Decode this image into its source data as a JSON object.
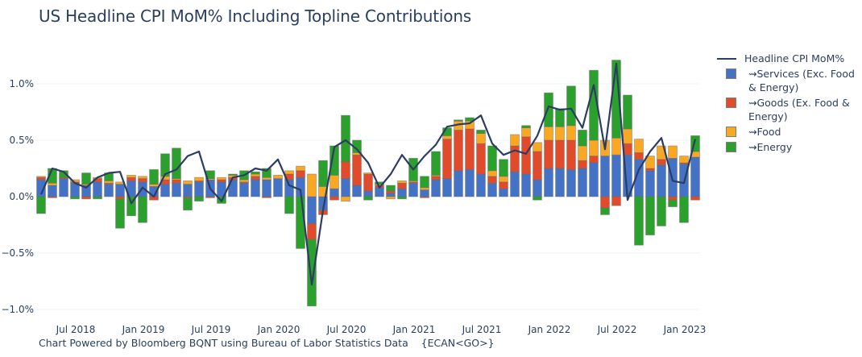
{
  "title": "US Headline CPI MoM% Including Topline Contributions",
  "footer": "Chart Powered by Bloomberg BQNT using Bureau of Labor Statistics Data    {ECAN<GO>}",
  "colors": {
    "services": "#4472c4",
    "goods": "#e04b2c",
    "food": "#f9a825",
    "energy": "#2ca02c",
    "headline": "#2b3d63",
    "axis_text": "#2a3f5f",
    "grid": "#ebf0f8"
  },
  "legend": [
    {
      "key": "headline",
      "label": "Headline CPI MoM%",
      "type": "line"
    },
    {
      "key": "services",
      "label": "⇝Services (Exc. Food & Energy)",
      "type": "bar"
    },
    {
      "key": "goods",
      "label": "⇝Goods (Ex. Food & Energy)",
      "type": "bar"
    },
    {
      "key": "food",
      "label": "⇝Food",
      "type": "bar"
    },
    {
      "key": "energy",
      "label": "⇝Energy",
      "type": "bar"
    }
  ],
  "chart_data": {
    "type": "bar",
    "barmode": "relative",
    "title": "US Headline CPI MoM% Including Topline Contributions",
    "xlabel": "",
    "ylabel": "",
    "ylim": [
      -1.05,
      1.35
    ],
    "yticks": [
      1.0,
      0.5,
      0.0,
      -0.5,
      -1.0
    ],
    "ytick_labels": [
      "1.0%",
      "0.5%",
      "0.0%",
      "−0.5%",
      "−1.0%"
    ],
    "xtick_labels": [
      {
        "label": "Jul 2018",
        "index": 3
      },
      {
        "label": "Jan 2019",
        "index": 9
      },
      {
        "label": "Jul 2019",
        "index": 15
      },
      {
        "label": "Jan 2020",
        "index": 21
      },
      {
        "label": "Jul 2020",
        "index": 27
      },
      {
        "label": "Jan 2021",
        "index": 33
      },
      {
        "label": "Jul 2021",
        "index": 39
      },
      {
        "label": "Jan 2022",
        "index": 45
      },
      {
        "label": "Jul 2022",
        "index": 51
      },
      {
        "label": "Jan 2023",
        "index": 57
      }
    ],
    "grid": true,
    "legend_position": "right",
    "categories": [
      "2018-04",
      "2018-05",
      "2018-06",
      "2018-07",
      "2018-08",
      "2018-09",
      "2018-10",
      "2018-11",
      "2018-12",
      "2019-01",
      "2019-02",
      "2019-03",
      "2019-04",
      "2019-05",
      "2019-06",
      "2019-07",
      "2019-08",
      "2019-09",
      "2019-10",
      "2019-11",
      "2019-12",
      "2020-01",
      "2020-02",
      "2020-03",
      "2020-04",
      "2020-05",
      "2020-06",
      "2020-07",
      "2020-08",
      "2020-09",
      "2020-10",
      "2020-11",
      "2020-12",
      "2021-01",
      "2021-02",
      "2021-03",
      "2021-04",
      "2021-05",
      "2021-06",
      "2021-07",
      "2021-08",
      "2021-09",
      "2021-10",
      "2021-11",
      "2021-12",
      "2022-01",
      "2022-02",
      "2022-03",
      "2022-04",
      "2022-05",
      "2022-06",
      "2022-07",
      "2022-08",
      "2022-09",
      "2022-10",
      "2022-11",
      "2022-12",
      "2023-01",
      "2023-02"
    ],
    "series": [
      {
        "name": "Services (Exc. Food & Energy)",
        "key": "services",
        "values": [
          0.15,
          0.1,
          0.16,
          0.12,
          0.1,
          0.13,
          0.11,
          0.11,
          0.14,
          0.13,
          0.09,
          0.11,
          0.12,
          0.11,
          0.13,
          0.15,
          0.13,
          0.15,
          0.12,
          0.15,
          0.15,
          0.16,
          0.15,
          0.17,
          -0.24,
          -0.12,
          0.07,
          0.16,
          0.1,
          0.05,
          0.08,
          0.03,
          0.07,
          0.12,
          0.06,
          0.15,
          0.16,
          0.23,
          0.24,
          0.2,
          0.12,
          0.07,
          0.22,
          0.2,
          0.15,
          0.25,
          0.25,
          0.24,
          0.25,
          0.3,
          0.36,
          0.37,
          0.37,
          0.33,
          0.23,
          0.28,
          0.34,
          0.29,
          0.35
        ]
      },
      {
        "name": "Goods (Ex. Food & Energy)",
        "key": "goods",
        "values": [
          0.02,
          -0.01,
          0.01,
          0.01,
          -0.02,
          0.03,
          0.01,
          -0.02,
          0.03,
          0.03,
          -0.03,
          0.04,
          0.03,
          -0.01,
          0.01,
          -0.01,
          0.02,
          0.02,
          0.01,
          0.03,
          -0.01,
          0.0,
          0.05,
          0.06,
          -0.14,
          -0.04,
          -0.03,
          0.15,
          0.27,
          0.15,
          0.02,
          0.02,
          0.05,
          0.01,
          -0.01,
          0.03,
          0.35,
          0.36,
          0.36,
          0.27,
          0.06,
          0.06,
          0.23,
          0.33,
          0.25,
          0.25,
          0.25,
          0.26,
          0.07,
          0.06,
          -0.1,
          -0.08,
          0.1,
          0.06,
          0.02,
          0.05,
          -0.03,
          0.01,
          -0.03
        ]
      },
      {
        "name": "Food",
        "key": "food",
        "values": [
          0.01,
          0.02,
          0.0,
          0.02,
          0.01,
          0.01,
          0.02,
          0.02,
          0.02,
          0.02,
          0.02,
          0.03,
          0.01,
          0.03,
          0.03,
          0.01,
          0.02,
          0.02,
          0.02,
          0.02,
          0.02,
          0.03,
          0.03,
          0.04,
          0.2,
          0.09,
          0.12,
          -0.04,
          0.02,
          0.01,
          0.01,
          -0.02,
          0.02,
          0.01,
          0.02,
          0.01,
          0.03,
          0.08,
          0.07,
          0.09,
          0.05,
          0.05,
          0.1,
          0.08,
          0.08,
          0.12,
          0.12,
          0.13,
          0.13,
          0.14,
          0.14,
          0.15,
          0.13,
          0.12,
          0.11,
          0.12,
          0.11,
          0.06,
          0.05
        ]
      },
      {
        "name": "Energy",
        "key": "energy",
        "values": [
          -0.15,
          0.13,
          0.06,
          -0.02,
          0.1,
          -0.02,
          0.07,
          -0.26,
          -0.17,
          -0.23,
          0.13,
          0.2,
          0.27,
          -0.11,
          -0.04,
          0.07,
          -0.06,
          0.01,
          0.08,
          0.02,
          0.08,
          0.0,
          -0.15,
          -0.46,
          -0.59,
          0.23,
          0.26,
          0.41,
          0.11,
          -0.03,
          0.02,
          0.05,
          -0.02,
          0.2,
          0.1,
          0.21,
          0.07,
          0.01,
          0.03,
          0.03,
          0.22,
          0.15,
          0.0,
          0.02,
          -0.03,
          0.3,
          0.16,
          0.35,
          0.14,
          0.62,
          -0.06,
          0.69,
          0.3,
          -0.43,
          -0.34,
          -0.26,
          -0.06,
          -0.23,
          0.14
        ]
      }
    ],
    "line": {
      "name": "Headline CPI MoM%",
      "key": "headline",
      "values": [
        0.02,
        0.25,
        0.22,
        0.12,
        0.08,
        0.17,
        0.21,
        0.22,
        -0.06,
        0.08,
        0.0,
        0.2,
        0.24,
        0.36,
        0.4,
        0.07,
        -0.04,
        0.17,
        0.19,
        0.25,
        0.23,
        0.33,
        0.1,
        0.06,
        -0.78,
        -0.12,
        0.44,
        0.5,
        0.42,
        0.3,
        0.08,
        0.2,
        0.37,
        0.24,
        0.36,
        0.46,
        0.62,
        0.64,
        0.65,
        0.72,
        0.47,
        0.37,
        0.41,
        0.38,
        0.54,
        0.8,
        0.77,
        0.78,
        0.61,
        0.99,
        0.42,
        1.18,
        -0.03,
        0.24,
        0.4,
        0.52,
        0.14,
        0.12,
        0.51
      ]
    }
  }
}
